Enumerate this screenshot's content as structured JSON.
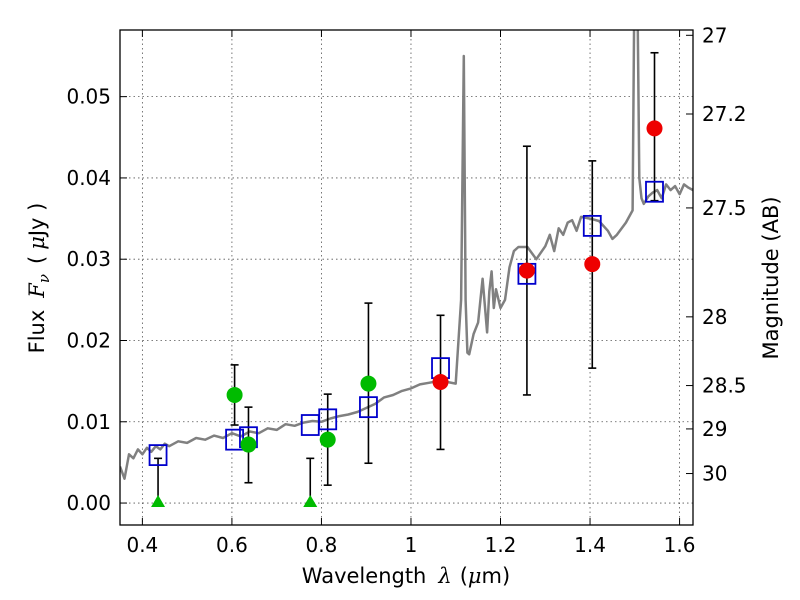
{
  "chart_data": {
    "type": "scatter",
    "xlabel_text": "Wavelength",
    "xlabel_symbol": "λ",
    "xlabel_unit_open": "(",
    "xlabel_unit_mu": "μ",
    "xlabel_unit_rest": "m)",
    "ylabel_text": "Flux",
    "ylabel_symbol": "F",
    "ylabel_subscript": "ν",
    "ylabel_unit_open": "(",
    "ylabel_unit_mu": "μ",
    "ylabel_unit_rest": "Jy )",
    "y2label": "Magnitude (AB)",
    "xlim": [
      0.35,
      1.63
    ],
    "ylim": [
      -0.0027,
      0.0582
    ],
    "xticks": [
      0.4,
      0.6,
      0.8,
      1.0,
      1.2,
      1.4,
      1.6
    ],
    "xtick_labels": [
      "0.4",
      "0.6",
      "0.8",
      "1",
      "1.2",
      "1.4",
      "1.6"
    ],
    "yticks": [
      0.0,
      0.01,
      0.02,
      0.03,
      0.04,
      0.05
    ],
    "ytick_labels": [
      "0.00",
      "0.01",
      "0.02",
      "0.03",
      "0.04",
      "0.05"
    ],
    "y2ticks": [
      27,
      27.2,
      27.5,
      28,
      28.5,
      29,
      30
    ],
    "y2tick_labels": [
      "27",
      "27.2",
      "27.5",
      "28",
      "28.5",
      "29",
      "30"
    ],
    "grid": true,
    "colors": {
      "model": "#808080",
      "green": "#00bb00",
      "red": "#ee0000",
      "model_box": "#0000cc",
      "errorbar": "#000000",
      "grid": "#555555"
    },
    "series": [
      {
        "marker": "circle",
        "color_key": "green",
        "points": [
          {
            "x": 0.606,
            "y": 0.0133,
            "yerr_lo": 0.0096,
            "yerr_hi": 0.017
          },
          {
            "x": 0.637,
            "y": 0.0072,
            "yerr_lo": 0.0025,
            "yerr_hi": 0.0118
          },
          {
            "x": 0.814,
            "y": 0.0078,
            "yerr_lo": 0.0022,
            "yerr_hi": 0.0134
          },
          {
            "x": 0.905,
            "y": 0.0147,
            "yerr_lo": 0.0049,
            "yerr_hi": 0.0246
          }
        ]
      },
      {
        "marker": "triangle-up",
        "color_key": "green",
        "points": [
          {
            "x": 0.435,
            "y": 0.0,
            "yerr_lo": 0.0,
            "yerr_hi": 0.0055
          },
          {
            "x": 0.775,
            "y": 0.0,
            "yerr_lo": 0.0,
            "yerr_hi": 0.0055
          }
        ]
      },
      {
        "marker": "circle",
        "color_key": "red",
        "points": [
          {
            "x": 1.066,
            "y": 0.0149,
            "yerr_lo": 0.0066,
            "yerr_hi": 0.0231
          },
          {
            "x": 1.259,
            "y": 0.0286,
            "yerr_lo": 0.0133,
            "yerr_hi": 0.0439
          },
          {
            "x": 1.405,
            "y": 0.0294,
            "yerr_lo": 0.0166,
            "yerr_hi": 0.0421
          },
          {
            "x": 1.544,
            "y": 0.0461,
            "yerr_lo": 0.0372,
            "yerr_hi": 0.0554
          }
        ]
      },
      {
        "marker": "open-square",
        "color_key": "model_box",
        "points": [
          {
            "x": 0.435,
            "y": 0.0059
          },
          {
            "x": 0.606,
            "y": 0.0078
          },
          {
            "x": 0.637,
            "y": 0.0081
          },
          {
            "x": 0.775,
            "y": 0.0096
          },
          {
            "x": 0.814,
            "y": 0.0103
          },
          {
            "x": 0.905,
            "y": 0.0118
          },
          {
            "x": 1.066,
            "y": 0.0166
          },
          {
            "x": 1.259,
            "y": 0.0282
          },
          {
            "x": 1.405,
            "y": 0.0341
          },
          {
            "x": 1.544,
            "y": 0.0383
          }
        ]
      }
    ],
    "model_spectrum": {
      "x": [
        0.35,
        0.36,
        0.37,
        0.38,
        0.39,
        0.4,
        0.41,
        0.42,
        0.43,
        0.44,
        0.45,
        0.46,
        0.48,
        0.5,
        0.52,
        0.54,
        0.56,
        0.58,
        0.6,
        0.62,
        0.64,
        0.66,
        0.68,
        0.7,
        0.72,
        0.74,
        0.76,
        0.78,
        0.8,
        0.82,
        0.84,
        0.86,
        0.88,
        0.9,
        0.92,
        0.94,
        0.96,
        0.98,
        1.0,
        1.02,
        1.04,
        1.06,
        1.08,
        1.1,
        1.112,
        1.118,
        1.122,
        1.126,
        1.13,
        1.14,
        1.15,
        1.16,
        1.17,
        1.175,
        1.18,
        1.185,
        1.19,
        1.2,
        1.21,
        1.22,
        1.23,
        1.24,
        1.26,
        1.28,
        1.3,
        1.31,
        1.32,
        1.33,
        1.34,
        1.35,
        1.36,
        1.37,
        1.38,
        1.4,
        1.42,
        1.44,
        1.45,
        1.46,
        1.48,
        1.495,
        1.5,
        1.503,
        1.506,
        1.51,
        1.515,
        1.52,
        1.53,
        1.54,
        1.55,
        1.56,
        1.57,
        1.58,
        1.59,
        1.6,
        1.61,
        1.62,
        1.63
      ],
      "y": [
        0.0045,
        0.003,
        0.006,
        0.0055,
        0.0066,
        0.006,
        0.0068,
        0.0063,
        0.007,
        0.0066,
        0.0073,
        0.007,
        0.0076,
        0.0074,
        0.008,
        0.0078,
        0.0083,
        0.008,
        0.0086,
        0.0082,
        0.0088,
        0.0086,
        0.0092,
        0.009,
        0.0097,
        0.0095,
        0.0099,
        0.0101,
        0.01,
        0.0104,
        0.0107,
        0.0109,
        0.0112,
        0.0117,
        0.0122,
        0.013,
        0.0133,
        0.0138,
        0.0141,
        0.0146,
        0.0148,
        0.015,
        0.0149,
        0.0147,
        0.025,
        0.055,
        0.025,
        0.0185,
        0.0183,
        0.0208,
        0.0222,
        0.0276,
        0.021,
        0.026,
        0.0285,
        0.024,
        0.0263,
        0.024,
        0.025,
        0.029,
        0.031,
        0.0315,
        0.0315,
        0.03,
        0.0316,
        0.033,
        0.031,
        0.0338,
        0.033,
        0.0345,
        0.0348,
        0.0335,
        0.0352,
        0.035,
        0.0347,
        0.0335,
        0.0325,
        0.033,
        0.0345,
        0.036,
        0.07,
        0.06,
        0.062,
        0.04,
        0.0375,
        0.0368,
        0.0377,
        0.0382,
        0.0385,
        0.0375,
        0.0392,
        0.0385,
        0.039,
        0.038,
        0.0392,
        0.0388,
        0.0385
      ]
    }
  }
}
